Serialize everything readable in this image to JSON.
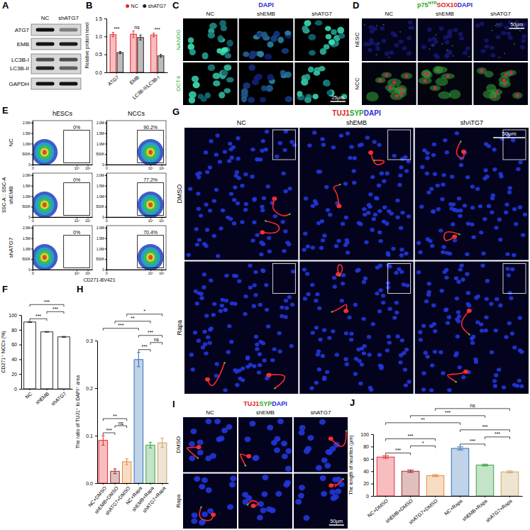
{
  "figure": {
    "panel_letters": [
      "A",
      "B",
      "C",
      "D",
      "E",
      "F",
      "G",
      "H",
      "I",
      "J"
    ],
    "blot": {
      "lanes": [
        "NC",
        "shATG7"
      ],
      "rows": [
        "ATG7",
        "EMB",
        "LC3B-I",
        "LC3B-II",
        "GAPDH"
      ]
    },
    "panel_c": {
      "title": [
        {
          "text": "DAPI",
          "color": "#2b2bd6"
        }
      ],
      "columns": [
        "NC",
        "shEMB",
        "shATG7"
      ],
      "rows": [
        "NANOG",
        "OCT4"
      ],
      "scale_bar": "25μm"
    },
    "panel_d": {
      "title": [
        {
          "text": "p75",
          "sup": "NTR",
          "color": "#1fa81f"
        },
        {
          "text": "SOX10",
          "color": "#e02020"
        },
        {
          "text": "DAPI",
          "color": "#2b2bd6"
        }
      ],
      "columns": [
        "NC",
        "shEMB",
        "shATG7"
      ],
      "rows": [
        "hESC",
        "NCC"
      ],
      "scale_bar": "50μm"
    },
    "flow": {
      "columns": [
        "hESCs",
        "NCCs"
      ],
      "rows": [
        "NC",
        "shEMB",
        "shATG7"
      ],
      "y_label": "SSC-A :: SSC-A",
      "x_label": "CD271-BV421",
      "log": "x",
      "xlim": [
        0,
        262144
      ],
      "xticks": [
        0,
        {
          "value": 10000,
          "label": "10⁴"
        },
        {
          "value": 100000,
          "label": "10⁵"
        }
      ],
      "ylim": [
        0,
        2100000
      ],
      "yticks": [
        0,
        {
          "value": 500000,
          "label": "500K"
        },
        {
          "value": 1000000,
          "label": "1.0M"
        },
        {
          "value": 1500000,
          "label": "1.5M"
        },
        {
          "value": 2000000,
          "label": "2.0M"
        }
      ],
      "gates": [
        [
          {
            "value": 0,
            "label": "0%"
          },
          {
            "value": 90.2,
            "label": "90.2%"
          }
        ],
        [
          {
            "value": 0,
            "label": "0%"
          },
          {
            "value": 77.2,
            "label": "77.2%"
          }
        ],
        [
          {
            "value": 0,
            "label": "0%"
          },
          {
            "value": 70.4,
            "label": "70.4%"
          }
        ]
      ]
    },
    "panel_g": {
      "title": [
        {
          "text": "TUJ1",
          "color": "#e02020"
        },
        {
          "text": "SYP",
          "color": "#1fa81f"
        },
        {
          "text": "DAPI",
          "color": "#2b2bd6"
        }
      ],
      "columns": [
        "NC",
        "shEMB",
        "shATG7"
      ],
      "rows": [
        "DMSO",
        "Rapa"
      ],
      "scale_bar": "50μm"
    },
    "panel_i": {
      "title": [
        {
          "text": "TUJ1",
          "color": "#e02020"
        },
        {
          "text": "SYP",
          "color": "#1fa81f"
        },
        {
          "text": "DAPI",
          "color": "#2b2bd6"
        }
      ],
      "columns": [
        "NC",
        "shEMB",
        "shATG7"
      ],
      "rows": [
        "DMSO",
        "Rapa"
      ],
      "scale_bar": "50μm"
    }
  },
  "chart_data": [
    {
      "type": "bar",
      "y_label": "Relative protein level",
      "categories": [
        "ATG7",
        "EMB",
        "LC3B-II/LC3B-I"
      ],
      "series": [
        {
          "name": "NC",
          "color": "#e8262b",
          "values": [
            1.05,
            1.06,
            1.04
          ],
          "errors": [
            0.06,
            0.09,
            0.05
          ]
        },
        {
          "name": "shATG7",
          "color": "#222222",
          "values": [
            0.55,
            0.97,
            0.46
          ],
          "errors": [
            0.03,
            0.07,
            0.04
          ]
        }
      ],
      "ylim": [
        0,
        1.5
      ],
      "yticks": [
        {
          "value": 0,
          "label": "0.0"
        },
        0.5,
        {
          "value": 1,
          "label": "1.0"
        },
        1.5
      ],
      "significance": [
        "***",
        "ns",
        "***"
      ],
      "legend": "top"
    },
    {
      "type": "bar",
      "y_label": "CD271⁺ NCCs (%)",
      "categories": [
        "NC",
        "shEMB",
        "shATG7"
      ],
      "values": [
        90.5,
        77.2,
        70.4
      ],
      "errors": [
        0.6,
        0.5,
        0.6
      ],
      "color": "#ffffff",
      "ylim": [
        0,
        100
      ],
      "yticks": [
        0,
        20,
        40,
        60,
        80,
        100
      ],
      "comparisons": [
        {
          "from": 0,
          "to": 1,
          "label": "***"
        },
        {
          "from": 1,
          "to": 2,
          "label": "***"
        },
        {
          "from": 0,
          "to": 2,
          "label": "***"
        }
      ]
    },
    {
      "type": "bar",
      "y_label": "The ratio of TUJ1⁺ to DAPI⁺ area",
      "categories": [
        "NC+DMSO",
        "shEMB+DMSO",
        "shATG7+DMSO",
        "NC+Rapa",
        "shEMB+Rapa",
        "shATG7+Rapa"
      ],
      "values": [
        0.09,
        0.025,
        0.045,
        0.26,
        0.08,
        0.085
      ],
      "errors": [
        0.01,
        0.005,
        0.006,
        0.015,
        0.006,
        0.01
      ],
      "colors": [
        "#e8262b",
        "#9b2a2a",
        "#e58a3a",
        "#2f6db5",
        "#3aa34a",
        "#c9a46a"
      ],
      "ylim": [
        0,
        0.3
      ],
      "yticks": [
        {
          "value": 0,
          "label": "0.0"
        },
        0.1,
        0.2,
        0.3
      ],
      "comparisons": [
        {
          "from": 0,
          "to": 1,
          "label": "***"
        },
        {
          "from": 1,
          "to": 2,
          "label": "ns"
        },
        {
          "from": 0,
          "to": 2,
          "label": "**"
        },
        {
          "from": 0,
          "to": 3,
          "label": "***"
        },
        {
          "from": 3,
          "to": 4,
          "label": "***"
        },
        {
          "from": 4,
          "to": 5,
          "label": "ns"
        },
        {
          "from": 1,
          "to": 4,
          "label": "**"
        },
        {
          "from": 2,
          "to": 5,
          "label": "*"
        },
        {
          "from": 3,
          "to": 5,
          "label": "***"
        }
      ]
    },
    {
      "type": "bar",
      "y_label": "The length of neurites (μm)",
      "categories": [
        "NC+DMSO",
        "shEMB+DMSO",
        "shATG7+DMSO",
        "NC+Rapa",
        "shEMB+Rapa",
        "shATG7+Rapa"
      ],
      "values": [
        63,
        40,
        33,
        77,
        50,
        39
      ],
      "errors": [
        2,
        2,
        1.5,
        2.5,
        1.5,
        1.5
      ],
      "colors": [
        "#e8262b",
        "#9b2a2a",
        "#e58a3a",
        "#2f6db5",
        "#3aa34a",
        "#c9a46a"
      ],
      "ylim": [
        0,
        100
      ],
      "yticks": [
        0,
        20,
        40,
        60,
        80,
        100
      ],
      "comparisons": [
        {
          "from": 0,
          "to": 1,
          "label": "***"
        },
        {
          "from": 1,
          "to": 2,
          "label": "*"
        },
        {
          "from": 0,
          "to": 2,
          "label": "***"
        },
        {
          "from": 0,
          "to": 3,
          "label": "**"
        },
        {
          "from": 3,
          "to": 4,
          "label": "***"
        },
        {
          "from": 4,
          "to": 5,
          "label": "***"
        },
        {
          "from": 3,
          "to": 5,
          "label": "***"
        },
        {
          "from": 1,
          "to": 4,
          "label": "***"
        },
        {
          "from": 2,
          "to": 5,
          "label": "ns"
        }
      ]
    }
  ]
}
